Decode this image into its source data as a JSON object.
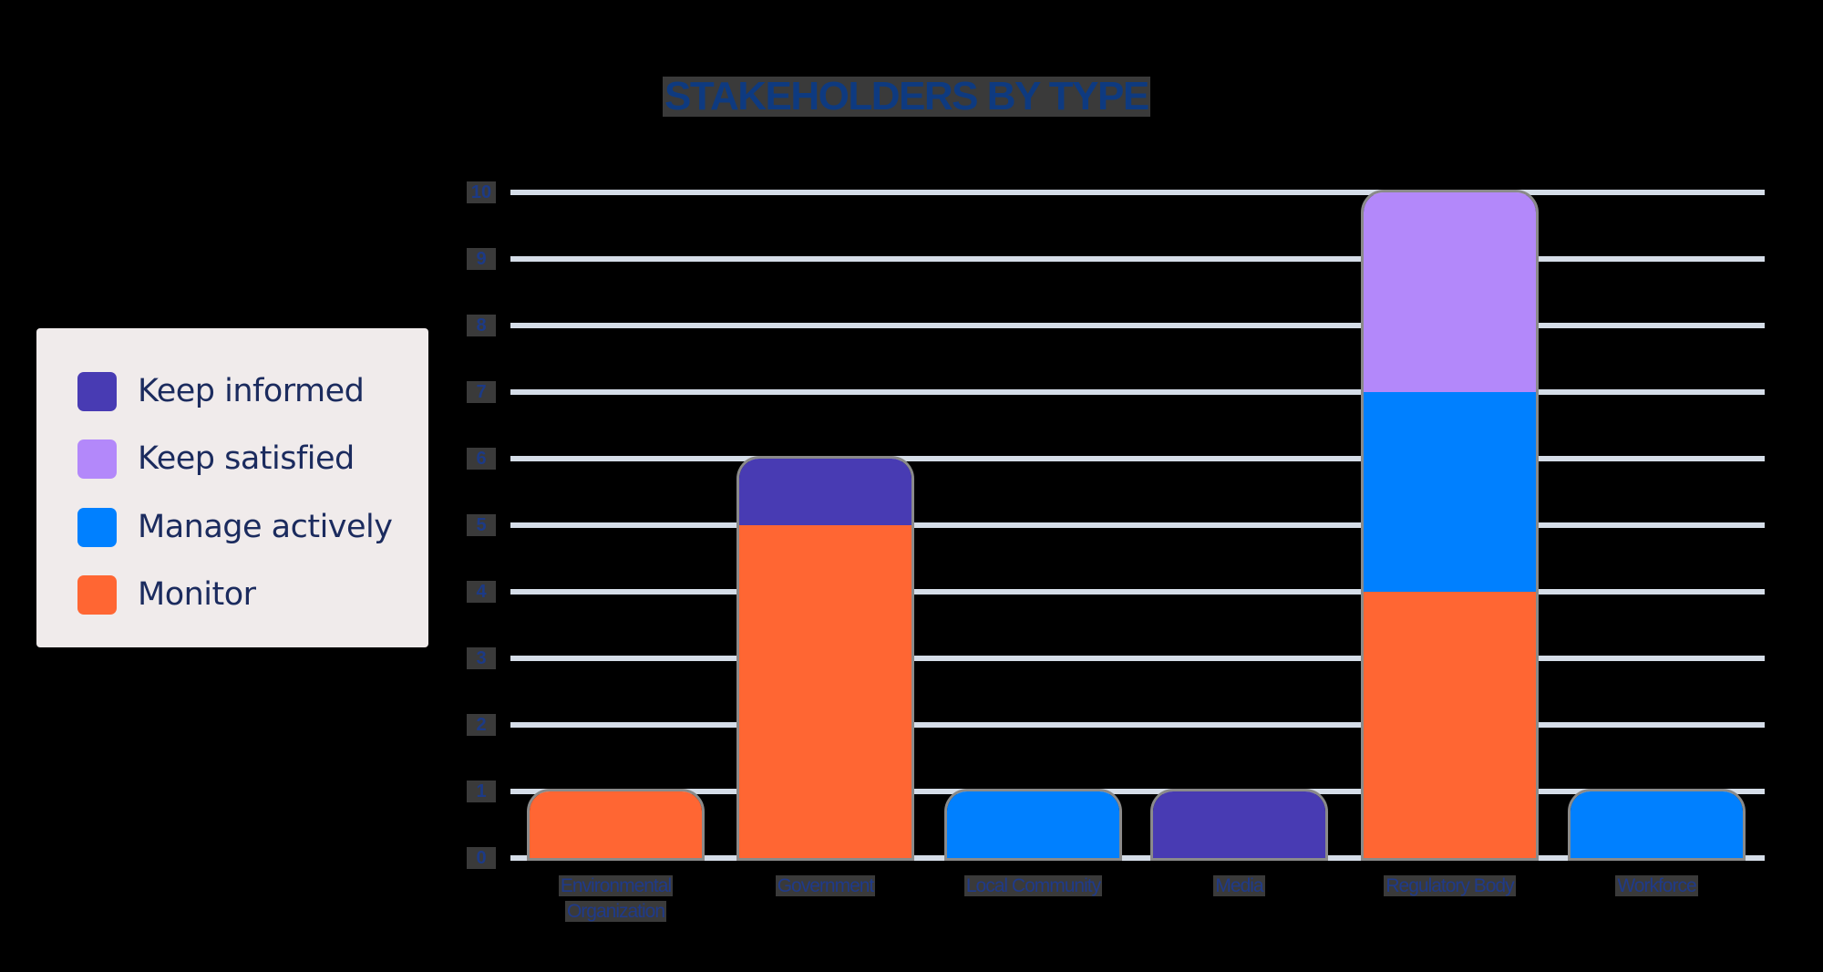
{
  "chart_data": {
    "type": "bar",
    "stacked": true,
    "title": "STAKEHOLDERS BY TYPE",
    "xlabel": "",
    "ylabel": "",
    "ylim": [
      0,
      10
    ],
    "yticks": [
      "0",
      "1",
      "2",
      "3",
      "4",
      "5",
      "6",
      "7",
      "8",
      "9",
      "10"
    ],
    "grid": true,
    "legend_position": "left",
    "categories": [
      "Environmental Organization",
      "Government",
      "Local Community",
      "Media",
      "Regulatory Body",
      "Workforce"
    ],
    "series": [
      {
        "name": "Monitor",
        "color": "#ff6633",
        "values": [
          1,
          5,
          0,
          0,
          4,
          0
        ]
      },
      {
        "name": "Manage actively",
        "color": "#0080ff",
        "values": [
          0,
          0,
          1,
          0,
          3,
          1
        ]
      },
      {
        "name": "Keep satisfied",
        "color": "#b388fa",
        "values": [
          0,
          0,
          0,
          0,
          3,
          0
        ]
      },
      {
        "name": "Keep informed",
        "color": "#483bb3",
        "values": [
          0,
          1,
          0,
          1,
          0,
          0
        ]
      }
    ]
  },
  "title": "STAKEHOLDERS BY TYPE",
  "legend": {
    "items": [
      {
        "label": "Keep informed",
        "color": "#483bb3"
      },
      {
        "label": "Keep satisfied",
        "color": "#b388fa"
      },
      {
        "label": "Manage actively",
        "color": "#0080ff"
      },
      {
        "label": "Monitor",
        "color": "#ff6633"
      }
    ]
  },
  "axis": {
    "y_ticks": [
      "0",
      "1",
      "2",
      "3",
      "4",
      "5",
      "6",
      "7",
      "8",
      "9",
      "10"
    ],
    "x_labels": [
      {
        "line1": "Environmental",
        "line2": "Organization"
      },
      {
        "line1": "Government",
        "line2": ""
      },
      {
        "line1": "Local Community",
        "line2": ""
      },
      {
        "line1": "Media",
        "line2": ""
      },
      {
        "line1": "Regulatory Body",
        "line2": ""
      },
      {
        "line1": "Workforce",
        "line2": ""
      }
    ]
  }
}
